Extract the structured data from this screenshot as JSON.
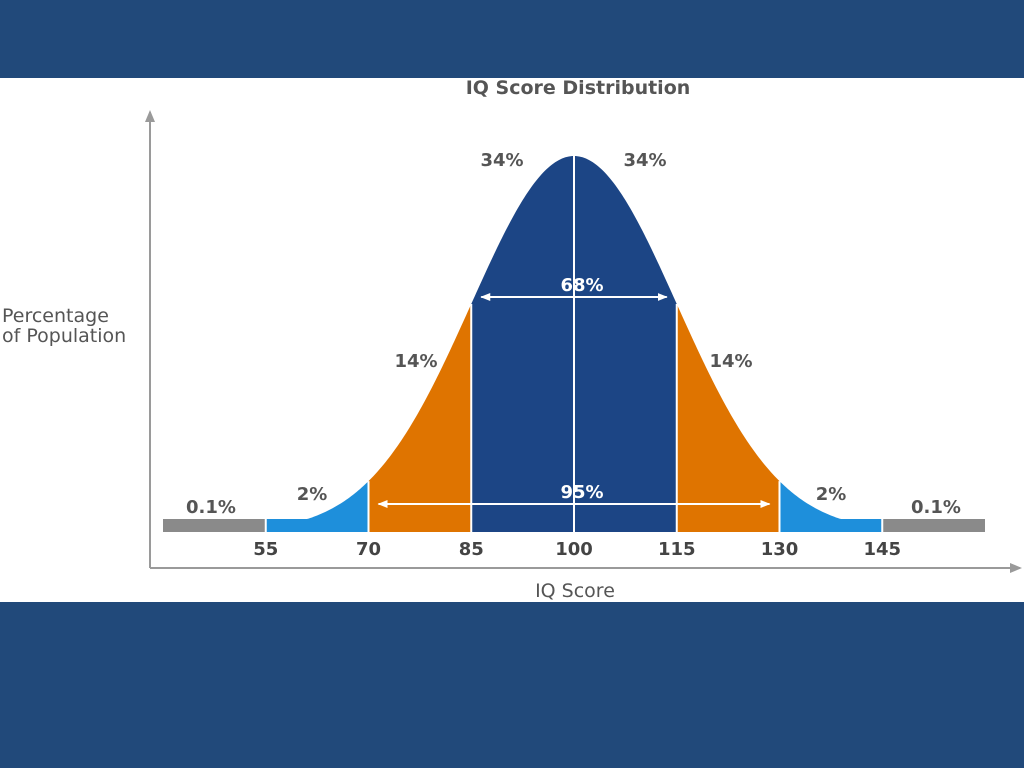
{
  "chart_data": {
    "type": "area",
    "title": "IQ Score Distribution",
    "xlabel": "IQ Score",
    "ylabel_lines": [
      "Percentage",
      "of Population"
    ],
    "mean": 100,
    "sd": 15,
    "xlim": [
      40,
      160
    ],
    "x_ticks": [
      "55",
      "70",
      "85",
      "100",
      "115",
      "130",
      "145"
    ],
    "bands": [
      {
        "from": 40,
        "to": 55,
        "label": "0.1%",
        "color": "#8a8a8a"
      },
      {
        "from": 55,
        "to": 70,
        "label": "2%",
        "color": "#1e8fdb"
      },
      {
        "from": 70,
        "to": 85,
        "label": "14%",
        "color": "#df7400"
      },
      {
        "from": 85,
        "to": 100,
        "label": "34%",
        "color": "#1c4585"
      },
      {
        "from": 100,
        "to": 115,
        "label": "34%",
        "color": "#1c4585"
      },
      {
        "from": 115,
        "to": 130,
        "label": "14%",
        "color": "#df7400"
      },
      {
        "from": 130,
        "to": 145,
        "label": "2%",
        "color": "#1e8fdb"
      },
      {
        "from": 145,
        "to": 160,
        "label": "0.1%",
        "color": "#8a8a8a"
      }
    ],
    "ranges": [
      {
        "from": 85,
        "to": 115,
        "label": "68%"
      },
      {
        "from": 70,
        "to": 130,
        "label": "95%"
      }
    ]
  }
}
